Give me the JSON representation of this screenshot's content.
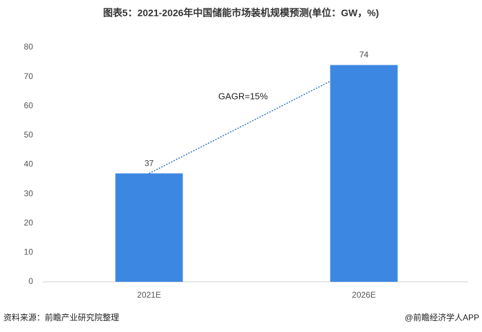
{
  "chart_data": {
    "type": "bar",
    "title": "图表5：2021-2026年中国储能市场装机规模预测(单位：GW，%)",
    "categories": [
      "2021E",
      "2026E"
    ],
    "values": [
      37,
      74
    ],
    "color": "#3c87e2",
    "ylim": [
      0,
      80
    ],
    "yticks": [
      0,
      10,
      20,
      30,
      40,
      50,
      60,
      70,
      80
    ],
    "grid": false,
    "annotation": "GAGR=15%",
    "source": "资料来源：前瞻产业研究院整理",
    "footer": "@前瞻经济学人APP"
  }
}
